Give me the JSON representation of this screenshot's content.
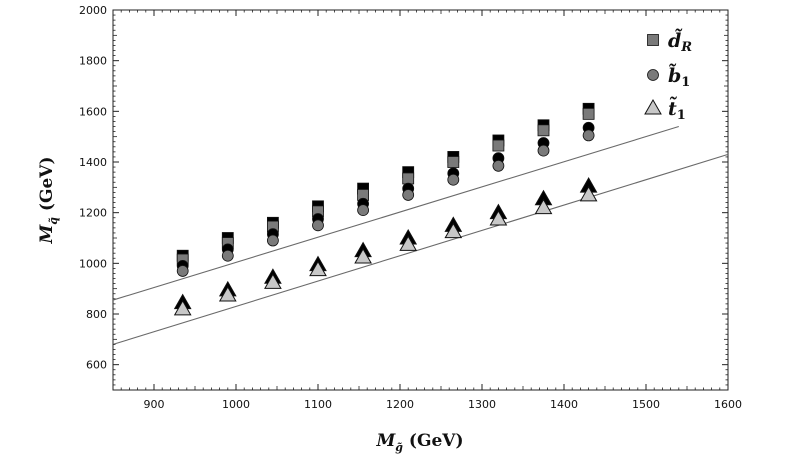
{
  "chart_data": {
    "type": "scatter",
    "xlabel": {
      "main": "M",
      "sub": "g̃",
      "units": " (GeV)"
    },
    "ylabel": {
      "main": "M",
      "sub": "q̃",
      "units": " (GeV)"
    },
    "xlim": [
      850,
      1600
    ],
    "ylim": [
      500,
      2000
    ],
    "xticks": [
      900,
      1000,
      1100,
      1200,
      1300,
      1400,
      1500,
      1600
    ],
    "yticks": [
      600,
      800,
      1000,
      1200,
      1400,
      1600,
      1800,
      2000
    ],
    "x": [
      935,
      990,
      1045,
      1100,
      1155,
      1210,
      1265,
      1320,
      1375,
      1430
    ],
    "legend_position": "top-right",
    "grid": false,
    "series": [
      {
        "name": "d̃R",
        "legend": {
          "main": "d̃",
          "sub": "R"
        },
        "marker": "square",
        "color": "#7a7a7a",
        "upper_color": "#000000",
        "values": [
          1015,
          1080,
          1145,
          1205,
          1270,
          1335,
          1400,
          1465,
          1525,
          1590
        ],
        "upper": [
          1030,
          1100,
          1160,
          1225,
          1295,
          1360,
          1420,
          1485,
          1545,
          1610
        ]
      },
      {
        "name": "b̃1",
        "legend": {
          "main": "b̃",
          "sub": "1"
        },
        "marker": "circle",
        "color": "#7a7a7a",
        "upper_color": "#000000",
        "values": [
          970,
          1030,
          1090,
          1150,
          1210,
          1270,
          1330,
          1385,
          1445,
          1505
        ],
        "upper": [
          990,
          1055,
          1115,
          1175,
          1235,
          1295,
          1355,
          1415,
          1475,
          1535
        ]
      },
      {
        "name": "t̃1",
        "legend": {
          "main": "t̃",
          "sub": "1"
        },
        "marker": "triangle",
        "color": "#c8c8c8",
        "upper_color": "#000000",
        "values": [
          820,
          875,
          925,
          975,
          1025,
          1075,
          1125,
          1175,
          1220,
          1270
        ],
        "upper": [
          845,
          895,
          945,
          995,
          1050,
          1100,
          1150,
          1200,
          1255,
          1305
        ]
      }
    ],
    "reference_lines": [
      {
        "x": [
          850,
          1540
        ],
        "y": [
          855,
          1540
        ]
      },
      {
        "x": [
          850,
          1600
        ],
        "y": [
          680,
          1430
        ]
      }
    ]
  }
}
